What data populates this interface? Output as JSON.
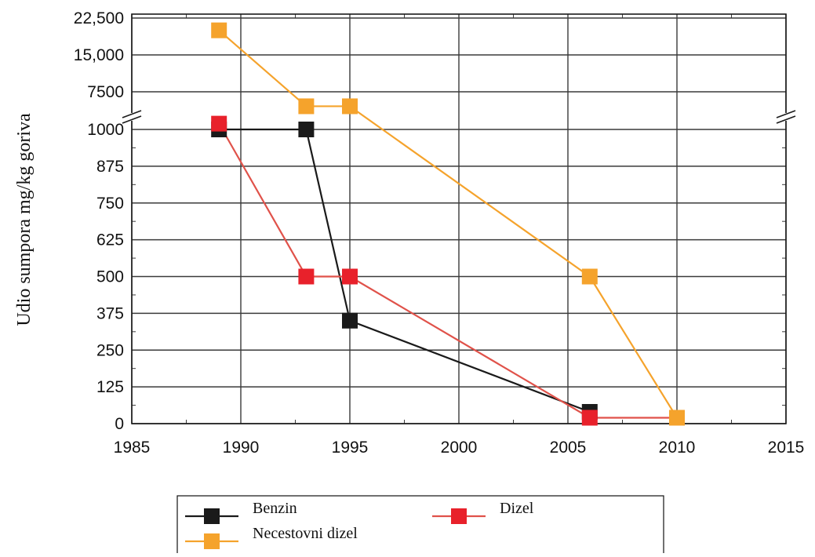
{
  "chart_data": {
    "type": "line",
    "title": "",
    "xlabel": "",
    "ylabel": "Udio sumpora mg/kg goriva",
    "xlim": [
      1985,
      2015
    ],
    "x_ticks": [
      "1985",
      "1990",
      "1995",
      "2000",
      "2005",
      "2010",
      "2015"
    ],
    "y_lower_ticks": [
      "0",
      "125",
      "250",
      "375",
      "500",
      "625",
      "750",
      "875",
      "1000"
    ],
    "y_upper_ticks": [
      "7500",
      "15,000",
      "22,500"
    ],
    "y_lower_range": [
      0,
      1000
    ],
    "y_upper_range": [
      7500,
      22500
    ],
    "y_axis_break": "between 1000 and 7500",
    "grid": true,
    "legend_position": "bottom",
    "series": [
      {
        "name": "Benzin",
        "color": "#1a1a1a",
        "line_color": "#1a1a1a",
        "points": [
          [
            1989,
            1000
          ],
          [
            1993,
            1000
          ],
          [
            1995,
            350
          ],
          [
            2006,
            40
          ]
        ]
      },
      {
        "name": "Dizel",
        "color": "#e8212b",
        "line_color": "#e0524a",
        "points": [
          [
            1989,
            2000
          ],
          [
            1993,
            500
          ],
          [
            1995,
            500
          ],
          [
            2006,
            20
          ],
          [
            2010,
            20
          ]
        ]
      },
      {
        "name": "Necestovni dizel",
        "color": "#f5a32c",
        "line_color": "#f5a32c",
        "points": [
          [
            1989,
            20000
          ],
          [
            1993,
            5000
          ],
          [
            1995,
            5000
          ],
          [
            2006,
            500
          ],
          [
            2010,
            20
          ]
        ]
      }
    ]
  }
}
